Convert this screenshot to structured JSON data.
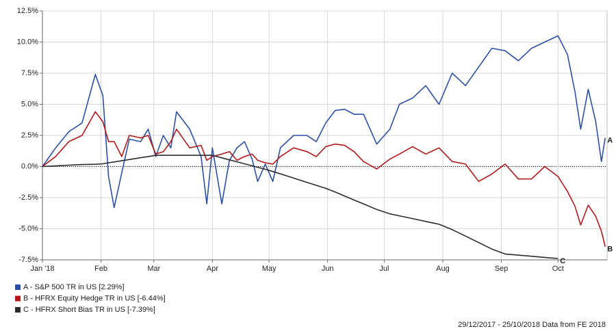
{
  "chart_data": {
    "type": "line",
    "x": [
      0,
      7,
      14,
      21,
      28,
      32,
      35,
      38,
      42,
      46,
      52,
      56,
      60,
      64,
      68,
      71,
      78,
      84,
      87,
      90,
      95,
      99,
      103,
      107,
      111,
      114,
      118,
      122,
      126,
      133,
      140,
      145,
      150,
      155,
      160,
      165,
      170,
      177,
      184,
      189,
      196,
      203,
      210,
      217,
      224,
      231,
      238,
      245,
      252,
      259,
      266,
      273,
      278,
      282,
      285,
      289,
      293,
      296,
      298
    ],
    "xlim": [
      0,
      299
    ],
    "xticks": [
      {
        "value": 0,
        "label": "Jan '18"
      },
      {
        "value": 31,
        "label": "Feb"
      },
      {
        "value": 59,
        "label": "Mar"
      },
      {
        "value": 90,
        "label": "Apr"
      },
      {
        "value": 120,
        "label": "May"
      },
      {
        "value": 151,
        "label": "Jun"
      },
      {
        "value": 181,
        "label": "Jul"
      },
      {
        "value": 212,
        "label": "Aug"
      },
      {
        "value": 243,
        "label": "Sep"
      },
      {
        "value": 273,
        "label": "Oct"
      }
    ],
    "ylim": [
      -7.5,
      12.5
    ],
    "yticks": [
      {
        "value": -7.5,
        "label": "-7.5%"
      },
      {
        "value": -5,
        "label": "-5.0%"
      },
      {
        "value": -2.5,
        "label": "-2.5%"
      },
      {
        "value": 0,
        "label": "0.0%"
      },
      {
        "value": 2.5,
        "label": "2.5%"
      },
      {
        "value": 5,
        "label": "5.0%"
      },
      {
        "value": 7.5,
        "label": "7.5%"
      },
      {
        "value": 10,
        "label": "10.0%"
      },
      {
        "value": 12.5,
        "label": "12.5%"
      }
    ],
    "grid": true,
    "zero_line": true,
    "series": [
      {
        "name": "A - S&P 500 TR in US [2.29%]",
        "label": "A",
        "color": "#2a4fa6",
        "values": [
          0,
          1.5,
          2.8,
          3.5,
          7.4,
          5.7,
          -0.8,
          -3.3,
          -0.5,
          2.2,
          2.0,
          3.0,
          0.8,
          2.5,
          1.5,
          4.4,
          3.0,
          0.8,
          -3.0,
          1.5,
          -3.0,
          0.5,
          1.5,
          2.0,
          0.6,
          -1.2,
          0.2,
          -1.2,
          1.5,
          2.5,
          2.5,
          2.0,
          3.5,
          4.5,
          4.6,
          4.2,
          4.2,
          1.8,
          3.0,
          5.0,
          5.5,
          6.5,
          5.0,
          7.5,
          6.5,
          8.0,
          9.5,
          9.3,
          8.5,
          9.5,
          10.0,
          10.5,
          9.0,
          6.0,
          3.0,
          6.2,
          3.6,
          0.4,
          2.29
        ]
      },
      {
        "name": "B - HFRX Equity Hedge TR in US [-6.44%]",
        "label": "B",
        "color": "#b01818",
        "values": [
          0,
          0.8,
          2.0,
          2.5,
          4.4,
          3.6,
          2.0,
          2.0,
          0.8,
          2.5,
          2.3,
          2.5,
          1.0,
          1.2,
          2.0,
          3.0,
          1.5,
          1.7,
          0.5,
          0.8,
          1.0,
          1.2,
          0.5,
          0.8,
          1.0,
          0.5,
          0.3,
          0.2,
          0.8,
          1.5,
          1.2,
          0.8,
          1.6,
          1.8,
          1.7,
          1.2,
          0.4,
          -0.2,
          0.6,
          1.0,
          1.6,
          1.0,
          1.5,
          0.4,
          0.2,
          -1.2,
          -0.6,
          0.2,
          -1.0,
          -1.0,
          0.0,
          -0.8,
          -2.0,
          -3.2,
          -4.7,
          -3.1,
          -4.0,
          -5.2,
          -6.44
        ]
      },
      {
        "name": "C - HFRX Short Bias TR in US [-7.39%]",
        "label": "C",
        "color": "#2b2b2b",
        "values": [
          0,
          0.05,
          0.11,
          0.16,
          0.18,
          0.22,
          0.3,
          0.37,
          0.47,
          0.56,
          0.71,
          0.8,
          0.9,
          0.9,
          0.9,
          0.9,
          0.9,
          0.9,
          0.9,
          0.9,
          0.7,
          0.54,
          0.38,
          0.22,
          0.06,
          -0.06,
          -0.22,
          -0.4,
          -0.59,
          -0.93,
          -1.27,
          -1.51,
          -1.75,
          -2.05,
          -2.37,
          -2.69,
          -3.0,
          -3.45,
          -3.8,
          -3.96,
          -4.18,
          -4.41,
          -4.64,
          -5.07,
          -5.59,
          -6.11,
          -6.63,
          -7.03,
          -7.12,
          -7.21,
          -7.3,
          -7.39,
          null,
          null,
          null,
          null,
          null,
          null,
          null
        ]
      }
    ],
    "footnote": "29/12/2017 - 25/10/2018 Data from FE 2018"
  }
}
